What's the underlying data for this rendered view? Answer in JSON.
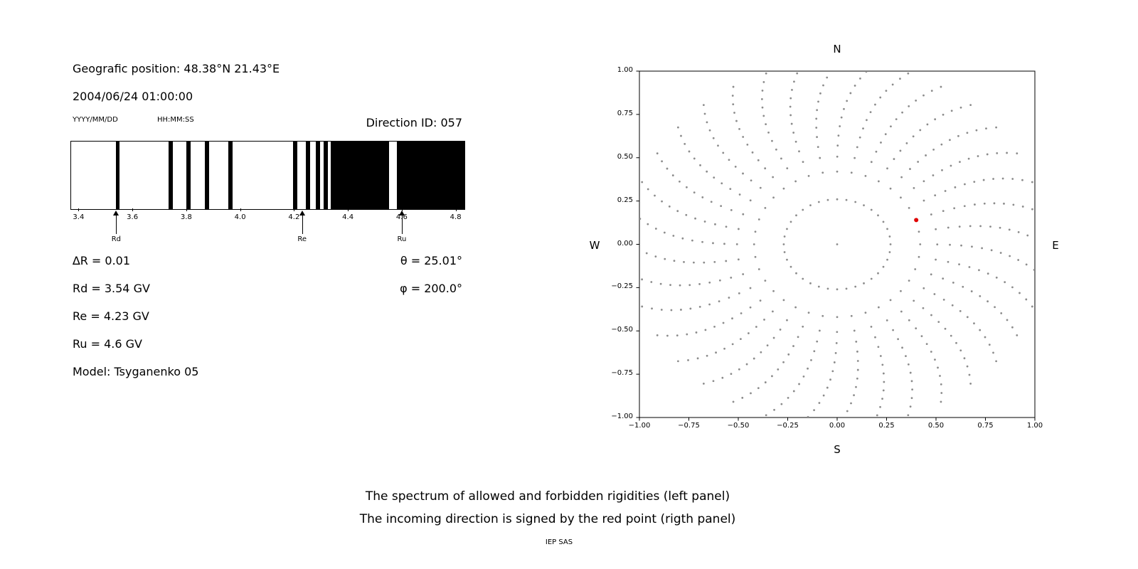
{
  "info": {
    "geographic_position": "Geografic position: 48.38°N 21.43°E",
    "datetime": "2004/06/24 01:00:00",
    "date_format_hint": "YYYY/MM/DD",
    "time_format_hint": "HH:MM:SS",
    "direction_id": "Direction ID: 057",
    "delta_r": "∆R = 0.01",
    "theta": "θ = 25.01°",
    "rd": "Rd = 3.54 GV",
    "phi": "φ = 200.0°",
    "re": "Re = 4.23 GV",
    "ru": "Ru = 4.6 GV",
    "model": "Model: Tsyganenko 05"
  },
  "captions": {
    "line1": "The spectrum of allowed and forbidden rigidities (left panel)",
    "line2": "The incoming direction is signed by the red point (rigth panel)",
    "footer": "IEP SAS"
  },
  "chart_data": [
    {
      "type": "bar",
      "panel": "left-rigidity-spectrum",
      "title": "",
      "xlim": [
        3.37,
        4.83
      ],
      "xtick_values": [
        3.4,
        3.6,
        3.8,
        4.0,
        4.2,
        4.4,
        4.6,
        4.8
      ],
      "xtick_labels": [
        "3.4",
        "3.6",
        "3.8",
        "4.0",
        "4.2",
        "4.4",
        "4.6",
        "4.8"
      ],
      "forbidden_bands_gv": [
        [
          3.536,
          3.55
        ],
        [
          3.732,
          3.748
        ],
        [
          3.798,
          3.814
        ],
        [
          3.866,
          3.882
        ],
        [
          3.953,
          3.969
        ],
        [
          4.194,
          4.21
        ],
        [
          4.241,
          4.257
        ],
        [
          4.278,
          4.294
        ],
        [
          4.307,
          4.323
        ],
        [
          4.334,
          4.55
        ],
        [
          4.579,
          4.83
        ]
      ],
      "markers": [
        {
          "label": "Rd",
          "value_gv": 3.54
        },
        {
          "label": "Re",
          "value_gv": 4.23
        },
        {
          "label": "Ru",
          "value_gv": 4.6
        }
      ]
    },
    {
      "type": "scatter",
      "panel": "right-incoming-direction-map",
      "title": "",
      "xlim": [
        -1.0,
        1.0
      ],
      "ylim": [
        -1.0,
        1.0
      ],
      "xtick_values": [
        -1.0,
        -0.75,
        -0.5,
        -0.25,
        0.0,
        0.25,
        0.5,
        0.75,
        1.0
      ],
      "xtick_labels": [
        "−1.00",
        "−0.75",
        "−0.50",
        "−0.25",
        "0.00",
        "0.25",
        "0.50",
        "0.75",
        "1.00"
      ],
      "ytick_values": [
        1.0,
        0.75,
        0.5,
        0.25,
        0.0,
        -0.25,
        -0.5,
        -0.75,
        -1.0
      ],
      "ytick_labels": [
        "1.00",
        "0.75",
        "0.50",
        "0.25",
        "0.00",
        "−0.25",
        "−0.50",
        "−0.75",
        "−1.00"
      ],
      "compass": {
        "north": "N",
        "south": "S",
        "west": "W",
        "east": "E"
      },
      "red_point": {
        "x": 0.4,
        "y": 0.14,
        "color": "#e00000"
      },
      "gray_pattern": {
        "color": "#8c8c8c",
        "dot_radius_px": 1.4,
        "center_dot": true,
        "inner_ring": {
          "radius_x": 0.27,
          "radius_y": 0.26,
          "count": 36
        },
        "rays": {
          "count": 36,
          "r_start": 0.42,
          "r_end": 1.05,
          "dots_per_ray": 13,
          "density_exponent": 0.8,
          "bend_deg": 10
        }
      }
    }
  ]
}
